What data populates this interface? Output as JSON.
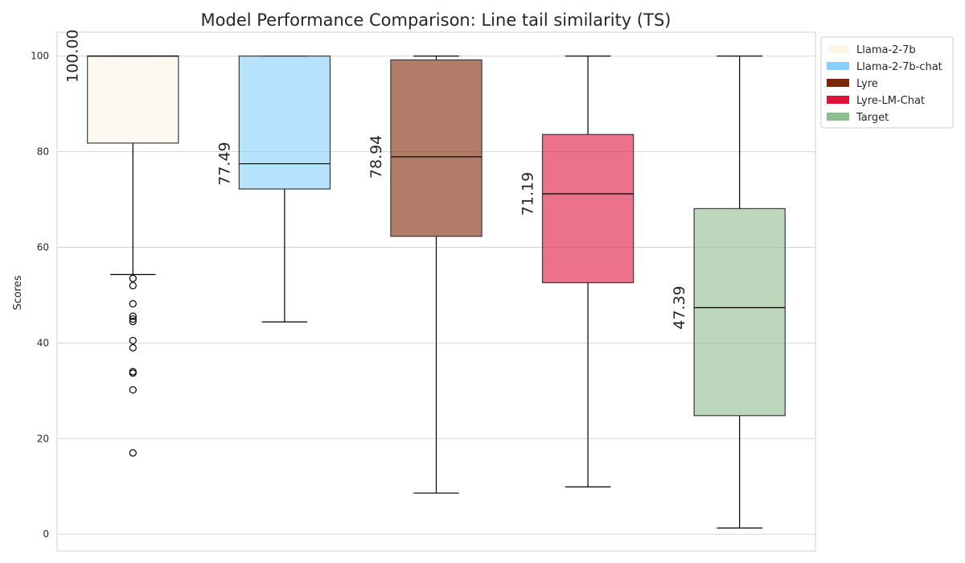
{
  "chart_data": {
    "type": "box",
    "title": "Model Performance Comparison: Line tail similarity (TS)",
    "xlabel": "",
    "ylabel": "Scores",
    "ylim": [
      -3.5,
      105
    ],
    "yticks": [
      0,
      20,
      40,
      60,
      80,
      100
    ],
    "grid": true,
    "legend_position": "outside-top-right",
    "series": [
      {
        "name": "Llama-2-7b",
        "color": "#fdf5e6",
        "whisker_low": 54.3,
        "q1": 81.8,
        "median": 100.0,
        "q3": 100.0,
        "whisker_high": 100.0,
        "median_label": "100.00",
        "outliers": [
          53.5,
          52.0,
          48.2,
          45.6,
          45.0,
          44.5,
          40.5,
          39.0,
          34.0,
          33.7,
          30.2,
          17.0
        ]
      },
      {
        "name": "Llama-2-7b-chat",
        "color": "#87cefa",
        "whisker_low": 44.4,
        "q1": 72.2,
        "median": 77.49,
        "q3": 100.0,
        "whisker_high": 100.0,
        "median_label": "77.49",
        "outliers": []
      },
      {
        "name": "Lyre",
        "color": "#7f2704",
        "whisker_low": 8.6,
        "q1": 62.3,
        "median": 78.94,
        "q3": 99.2,
        "whisker_high": 100.0,
        "median_label": "78.94",
        "outliers": []
      },
      {
        "name": "Lyre-LM-Chat",
        "color": "#dc143c",
        "whisker_low": 9.9,
        "q1": 52.6,
        "median": 71.19,
        "q3": 83.6,
        "whisker_high": 100.0,
        "median_label": "71.19",
        "outliers": []
      },
      {
        "name": "Target",
        "color": "#8fbc8f",
        "whisker_low": 1.3,
        "q1": 24.8,
        "median": 47.39,
        "q3": 68.1,
        "whisker_high": 100.0,
        "median_label": "47.39",
        "outliers": []
      }
    ]
  }
}
